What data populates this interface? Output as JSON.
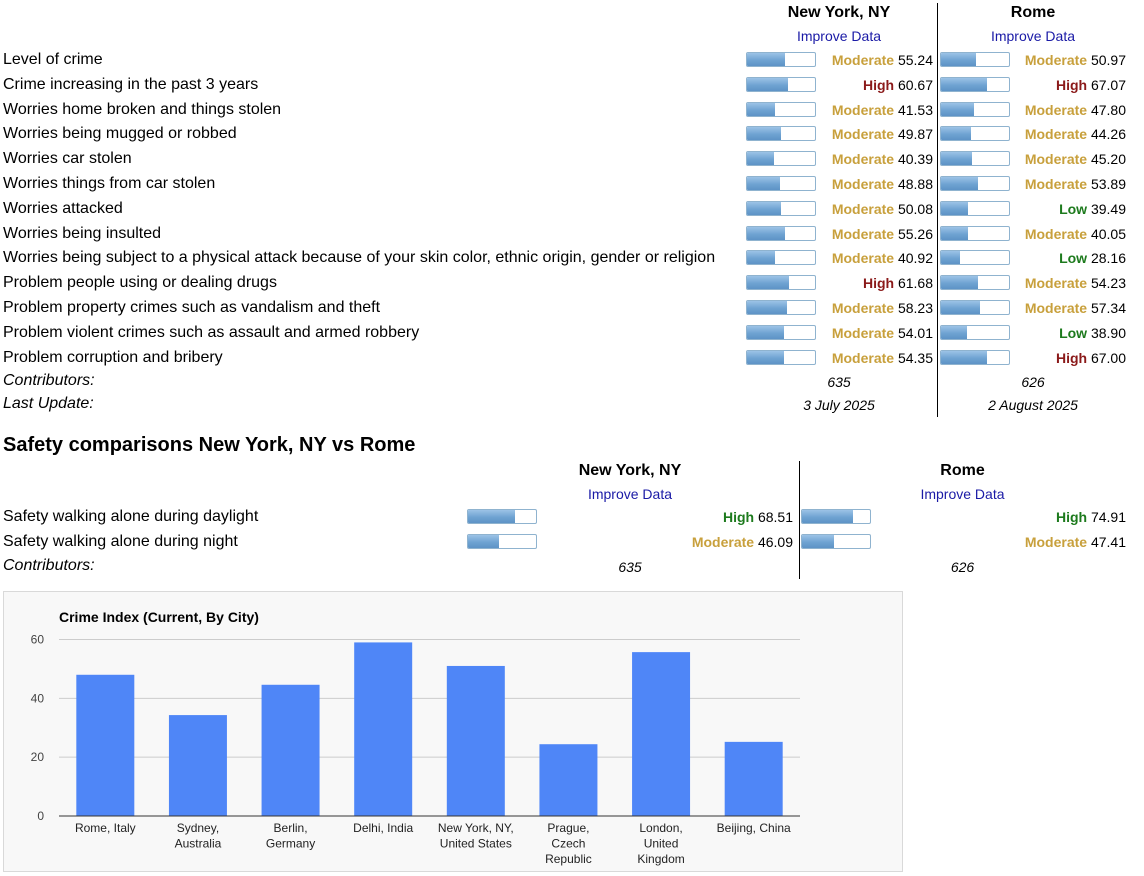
{
  "crime": {
    "cities": [
      {
        "name": "New York, NY",
        "improve": "Improve Data"
      },
      {
        "name": "Rome",
        "improve": "Improve Data"
      }
    ],
    "rows": [
      {
        "label": "Level of crime",
        "values": [
          {
            "level": "Moderate",
            "score": "55.24"
          },
          {
            "level": "Moderate",
            "score": "50.97"
          }
        ]
      },
      {
        "label": "Crime increasing in the past 3 years",
        "values": [
          {
            "level": "High",
            "score": "60.67"
          },
          {
            "level": "High",
            "score": "67.07"
          }
        ]
      },
      {
        "label": "Worries home broken and things stolen",
        "values": [
          {
            "level": "Moderate",
            "score": "41.53"
          },
          {
            "level": "Moderate",
            "score": "47.80"
          }
        ]
      },
      {
        "label": "Worries being mugged or robbed",
        "values": [
          {
            "level": "Moderate",
            "score": "49.87"
          },
          {
            "level": "Moderate",
            "score": "44.26"
          }
        ]
      },
      {
        "label": "Worries car stolen",
        "values": [
          {
            "level": "Moderate",
            "score": "40.39"
          },
          {
            "level": "Moderate",
            "score": "45.20"
          }
        ]
      },
      {
        "label": "Worries things from car stolen",
        "values": [
          {
            "level": "Moderate",
            "score": "48.88"
          },
          {
            "level": "Moderate",
            "score": "53.89"
          }
        ]
      },
      {
        "label": "Worries attacked",
        "values": [
          {
            "level": "Moderate",
            "score": "50.08"
          },
          {
            "level": "Low",
            "score": "39.49"
          }
        ]
      },
      {
        "label": "Worries being insulted",
        "values": [
          {
            "level": "Moderate",
            "score": "55.26"
          },
          {
            "level": "Moderate",
            "score": "40.05"
          }
        ]
      },
      {
        "label": "Worries being subject to a physical attack because of your skin color, ethnic origin, gender or religion",
        "values": [
          {
            "level": "Moderate",
            "score": "40.92"
          },
          {
            "level": "Low",
            "score": "28.16"
          }
        ]
      },
      {
        "label": "Problem people using or dealing drugs",
        "values": [
          {
            "level": "High",
            "score": "61.68"
          },
          {
            "level": "Moderate",
            "score": "54.23"
          }
        ]
      },
      {
        "label": "Problem property crimes such as vandalism and theft",
        "values": [
          {
            "level": "Moderate",
            "score": "58.23"
          },
          {
            "level": "Moderate",
            "score": "57.34"
          }
        ]
      },
      {
        "label": "Problem violent crimes such as assault and armed robbery",
        "values": [
          {
            "level": "Moderate",
            "score": "54.01"
          },
          {
            "level": "Low",
            "score": "38.90"
          }
        ]
      },
      {
        "label": "Problem corruption and bribery",
        "values": [
          {
            "level": "Moderate",
            "score": "54.35"
          },
          {
            "level": "High",
            "score": "67.00"
          }
        ]
      }
    ],
    "contributors_label": "Contributors:",
    "contributors": [
      "635",
      "626"
    ],
    "last_update_label": "Last Update:",
    "last_update": [
      "3 July 2025",
      "2 August 2025"
    ]
  },
  "safety": {
    "heading": "Safety comparisons New York, NY vs Rome",
    "cities": [
      {
        "name": "New York, NY",
        "improve": "Improve Data"
      },
      {
        "name": "Rome",
        "improve": "Improve Data"
      }
    ],
    "rows": [
      {
        "label": "Safety walking alone during daylight",
        "values": [
          {
            "level": "High",
            "score": "68.51"
          },
          {
            "level": "High",
            "score": "74.91"
          }
        ]
      },
      {
        "label": "Safety walking alone during night",
        "values": [
          {
            "level": "Moderate",
            "score": "46.09"
          },
          {
            "level": "Moderate",
            "score": "47.41"
          }
        ]
      }
    ],
    "contributors_label": "Contributors:",
    "contributors": [
      "635",
      "626"
    ]
  },
  "colors": {
    "moderate": "#c8a03c",
    "high": "#8b1a1a",
    "low": "#1d7a1d",
    "safety_high": "#1d7a1d",
    "bar": "#4f86f7",
    "link": "#1a1aa6"
  },
  "chart_data": {
    "type": "bar",
    "title": "Crime Index (Current, By City)",
    "categories": [
      "Rome, Italy",
      "Sydney, Australia",
      "Berlin, Germany",
      "Delhi, India",
      "New York, NY, United States",
      "Prague, Czech Republic",
      "London, United Kingdom",
      "Beijing, China"
    ],
    "category_lines": [
      [
        "Rome, Italy"
      ],
      [
        "Sydney,",
        "Australia"
      ],
      [
        "Berlin,",
        "Germany"
      ],
      [
        "Delhi, India"
      ],
      [
        "New York, NY,",
        "United States"
      ],
      [
        "Prague,",
        "Czech",
        "Republic"
      ],
      [
        "London,",
        "United",
        "Kingdom"
      ],
      [
        "Beijing, China"
      ]
    ],
    "values": [
      48,
      34.3,
      44.6,
      59,
      51,
      24.4,
      55.7,
      25.2
    ],
    "yticks": [
      "0",
      "20",
      "40",
      "60"
    ],
    "ylim": [
      0,
      60.5
    ],
    "xlabel": "",
    "ylabel": "",
    "grid": true
  }
}
